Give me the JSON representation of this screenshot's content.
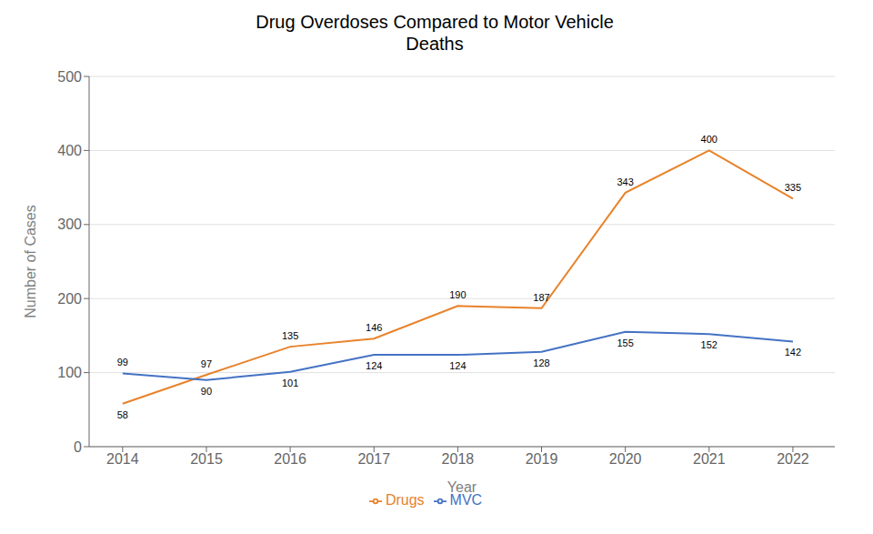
{
  "chart_data": {
    "type": "line",
    "title": "Drug Overdoses Compared to Motor Vehicle\nDeaths",
    "xlabel": "Year",
    "ylabel": "Number of Cases",
    "x": [
      2014,
      2015,
      2016,
      2017,
      2018,
      2019,
      2020,
      2021,
      2022
    ],
    "xlim": [
      2013.6,
      2022.5
    ],
    "xticks": [
      2014,
      2015,
      2016,
      2017,
      2018,
      2019,
      2020,
      2021,
      2022
    ],
    "ylim": [
      0,
      500
    ],
    "yticks": [
      0,
      100,
      200,
      300,
      400,
      500
    ],
    "series": [
      {
        "name": "Drugs",
        "color": "#E8822A",
        "values": [
          58,
          97,
          135,
          146,
          190,
          187,
          343,
          400,
          335
        ]
      },
      {
        "name": "MVC",
        "color": "#4472C4",
        "values": [
          99,
          90,
          101,
          124,
          124,
          128,
          155,
          152,
          142
        ]
      }
    ],
    "grid": "y",
    "legend": "bottom",
    "data_labels": true,
    "marker": "none"
  }
}
